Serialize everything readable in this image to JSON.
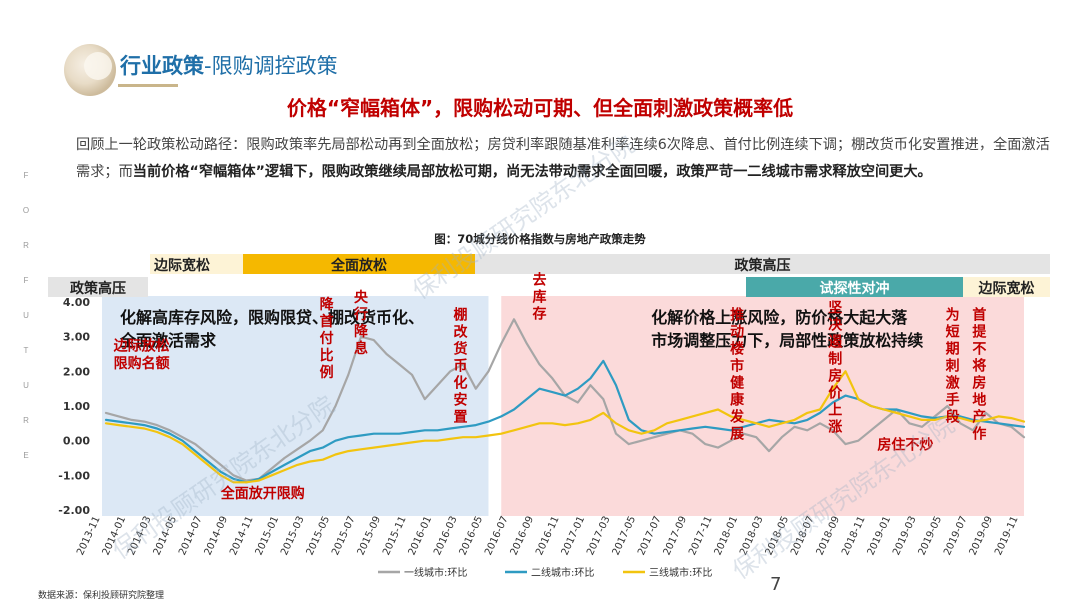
{
  "header": {
    "title_main": "行业政策",
    "title_sep": "-",
    "title_sub": "限购调控政策"
  },
  "main_title": "价格“窄幅箱体”，限购松动可期、但全面刺激政策概率低",
  "paragraph": {
    "part1": "回顾上一轮政策松动路径：限购政策率先局部松动再到全面放松；房贷利率跟随基准利率连续6次降息、首付比例连续下调；棚改货币化安置推进，全面激活需求；而",
    "part2_bold": "当前价格“窄幅箱体”逻辑下，限购政策继续局部放松可期，尚无法带动需求全面回暖，政策严苛一二线城市需求释放空间更大。"
  },
  "side_letters": [
    "F",
    "O",
    "R",
    "F",
    "U",
    "T",
    "U",
    "R",
    "E"
  ],
  "watermark": "保利投顾研究院东北分院",
  "source": "数据来源：保利投顾研究院整理",
  "page_number": "7",
  "colors": {
    "line1": "#a6a6a6",
    "line2": "#2e9bc2",
    "line3": "#f2c40f",
    "region_blue": "#dce8f5",
    "region_pink": "#fbdada",
    "band_gray": "#e4e4e4",
    "band_yellow": "#f5b800",
    "band_cream": "#fdf3d6",
    "band_teal": "#4aa9a9",
    "annotation_red": "#c00000"
  },
  "policy_bands": {
    "row1": [
      {
        "label": "边际宽松",
        "start": 0,
        "end": 6,
        "style": "cream"
      },
      {
        "label": "全面放松",
        "start": 6,
        "end": 15,
        "style": "yellow"
      },
      {
        "label": "政策高压",
        "start": 15,
        "end": 53,
        "style": "gray"
      }
    ],
    "row2": [
      {
        "label": "政策高压",
        "start": -2,
        "end": 2,
        "style": "gray"
      },
      {
        "label": "试探性对冲",
        "start": 53,
        "end": 70,
        "style": "teal"
      },
      {
        "label": "边际宽松",
        "start": 70,
        "end": 74,
        "style": "cream"
      }
    ]
  },
  "chart_data": {
    "type": "line",
    "title": "图：70城分线价格指数与房地产政策走势",
    "ylim": [
      -2.0,
      4.0
    ],
    "yticks": [
      "4.00",
      "3.00",
      "2.00",
      "1.00",
      "0.00",
      "-1.00",
      "-2.00"
    ],
    "x_labels": [
      "2013-11",
      "2014-01",
      "2014-03",
      "2014-05",
      "2014-07",
      "2014-09",
      "2014-11",
      "2015-01",
      "2015-03",
      "2015-05",
      "2015-07",
      "2015-09",
      "2015-11",
      "2016-01",
      "2016-03",
      "2016-05",
      "2016-07",
      "2016-09",
      "2016-11",
      "2017-01",
      "2017-03",
      "2017-05",
      "2017-07",
      "2017-09",
      "2017-11",
      "2018-01",
      "2018-03",
      "2018-05",
      "2018-07",
      "2018-09",
      "2018-11",
      "2019-01",
      "2019-03",
      "2019-05",
      "2019-07",
      "2019-09",
      "2019-11"
    ],
    "regions": [
      {
        "text": "化解高库存风险，限购限贷、棚改货币化、\n全面激活需求",
        "start": 0,
        "end": 30,
        "style": "blue"
      },
      {
        "text": "化解价格上涨风险，防价格大起大落\n市场调整压力下，局部性政策放松持续",
        "start": 31,
        "end": 72,
        "style": "pink"
      }
    ],
    "series": [
      {
        "name": "一线城市:环比",
        "color": "#a6a6a6",
        "values": [
          0.8,
          0.7,
          0.6,
          0.55,
          0.45,
          0.3,
          0.1,
          -0.1,
          -0.4,
          -0.7,
          -1.0,
          -1.15,
          -1.1,
          -0.8,
          -0.5,
          -0.25,
          0.0,
          0.3,
          1.0,
          1.9,
          3.0,
          2.9,
          2.5,
          2.2,
          1.9,
          1.2,
          1.6,
          2.0,
          2.2,
          1.5,
          2.0,
          2.8,
          3.5,
          2.8,
          2.2,
          1.8,
          1.3,
          1.1,
          1.6,
          1.2,
          0.2,
          -0.1,
          0.0,
          0.1,
          0.2,
          0.3,
          0.2,
          -0.1,
          -0.2,
          0.0,
          0.2,
          0.1,
          -0.3,
          0.1,
          0.4,
          0.3,
          0.5,
          0.3,
          -0.1,
          0.0,
          0.3,
          0.6,
          0.9,
          0.5,
          0.4,
          0.7,
          1.0,
          0.5,
          0.3,
          0.8,
          0.5,
          0.4,
          0.1
        ]
      },
      {
        "name": "二线城市:环比",
        "color": "#2e9bc2",
        "values": [
          0.6,
          0.55,
          0.5,
          0.45,
          0.35,
          0.2,
          0.0,
          -0.3,
          -0.6,
          -0.9,
          -1.1,
          -1.2,
          -1.1,
          -0.9,
          -0.7,
          -0.5,
          -0.3,
          -0.2,
          0.0,
          0.1,
          0.15,
          0.2,
          0.2,
          0.2,
          0.25,
          0.3,
          0.3,
          0.35,
          0.4,
          0.45,
          0.55,
          0.7,
          0.9,
          1.2,
          1.5,
          1.4,
          1.3,
          1.5,
          1.8,
          2.3,
          1.6,
          0.6,
          0.3,
          0.2,
          0.25,
          0.3,
          0.35,
          0.4,
          0.35,
          0.3,
          0.4,
          0.5,
          0.6,
          0.55,
          0.5,
          0.6,
          0.8,
          1.1,
          1.3,
          1.2,
          1.0,
          0.9,
          0.9,
          0.8,
          0.7,
          0.65,
          0.7,
          0.7,
          0.6,
          0.55,
          0.5,
          0.45,
          0.4
        ]
      },
      {
        "name": "三线城市:环比",
        "color": "#f2c40f",
        "values": [
          0.5,
          0.45,
          0.4,
          0.35,
          0.25,
          0.1,
          -0.1,
          -0.4,
          -0.7,
          -1.0,
          -1.2,
          -1.2,
          -1.15,
          -1.0,
          -0.85,
          -0.7,
          -0.6,
          -0.55,
          -0.4,
          -0.3,
          -0.25,
          -0.2,
          -0.15,
          -0.1,
          -0.05,
          0.0,
          0.0,
          0.05,
          0.1,
          0.1,
          0.15,
          0.2,
          0.3,
          0.4,
          0.5,
          0.5,
          0.45,
          0.5,
          0.6,
          0.8,
          0.5,
          0.3,
          0.2,
          0.3,
          0.5,
          0.6,
          0.7,
          0.8,
          0.9,
          0.7,
          0.6,
          0.5,
          0.4,
          0.5,
          0.6,
          0.8,
          0.9,
          1.5,
          2.0,
          1.2,
          1.0,
          0.9,
          0.8,
          0.7,
          0.6,
          0.6,
          0.7,
          0.65,
          0.55,
          0.6,
          0.7,
          0.65,
          0.55
        ]
      }
    ],
    "annotations": [
      {
        "text": "边际放松",
        "x": 0.6,
        "y": 2.6,
        "dir": "h"
      },
      {
        "text": "限购名额",
        "x": 0.6,
        "y": 2.1,
        "dir": "h"
      },
      {
        "text": "全面放开限购",
        "x": 9.0,
        "y": -1.65,
        "dir": "h"
      },
      {
        "text": "降首付比例",
        "x": 17.3,
        "y": 2.3,
        "dir": "v"
      },
      {
        "text": "央行降息",
        "x": 20.0,
        "y": 2.5,
        "dir": "v"
      },
      {
        "text": "棚改货币化安置",
        "x": 27.8,
        "y": 2.0,
        "dir": "v"
      },
      {
        "text": "去库存",
        "x": 34.0,
        "y": 3.0,
        "dir": "v"
      },
      {
        "text": "推动楼市健康发展",
        "x": 49.5,
        "y": 2.0,
        "dir": "v"
      },
      {
        "text": "坚决遏制房价上涨",
        "x": 57.2,
        "y": 2.2,
        "dir": "v"
      },
      {
        "text": "房住不炒",
        "x": 60.5,
        "y": -0.25,
        "dir": "h"
      },
      {
        "text": "为短期刺激手段",
        "x": 66.4,
        "y": 2.0,
        "dir": "v"
      },
      {
        "text": "首提不将房地产作",
        "x": 68.5,
        "y": 2.0,
        "dir": "v"
      }
    ]
  }
}
